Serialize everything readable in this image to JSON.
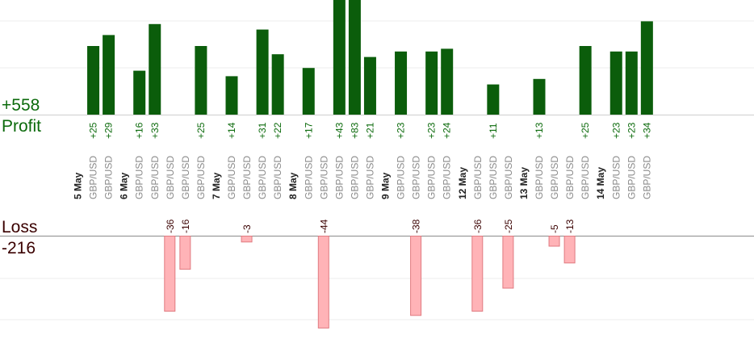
{
  "summary": {
    "profit_total": "+558",
    "profit_label": "Profit",
    "loss_label": "Loss",
    "loss_total": "-216"
  },
  "colors": {
    "profit_bar": "#0b5d0b",
    "profit_text": "#0b6a0b",
    "loss_bar": "#ffb3b7",
    "loss_edge": "#e07a80",
    "loss_text": "#3a0000",
    "day_text": "#222222",
    "pair_text": "#8a8a8a"
  },
  "chart_data": {
    "type": "bar",
    "title": "",
    "xlabel": "",
    "ylabel": "",
    "profit_axis_clipped_above": 30,
    "loss_axis_clipped_below": -40,
    "slots": [
      {
        "kind": "day",
        "label": "5 May"
      },
      {
        "kind": "trade",
        "pair": "GBP/USD",
        "value": 25
      },
      {
        "kind": "trade",
        "pair": "GBP/USD",
        "value": 29
      },
      {
        "kind": "day",
        "label": "6 May"
      },
      {
        "kind": "trade",
        "pair": "GBP/USD",
        "value": 16
      },
      {
        "kind": "trade",
        "pair": "GBP/USD",
        "value": 33
      },
      {
        "kind": "trade",
        "pair": "GBP/USD",
        "value": -36
      },
      {
        "kind": "trade",
        "pair": "GBP/USD",
        "value": -16
      },
      {
        "kind": "trade",
        "pair": "GBP/USD",
        "value": 25
      },
      {
        "kind": "day",
        "label": "7 May"
      },
      {
        "kind": "trade",
        "pair": "GBP/USD",
        "value": 14
      },
      {
        "kind": "trade",
        "pair": "GBP/USD",
        "value": -3
      },
      {
        "kind": "trade",
        "pair": "GBP/USD",
        "value": 31
      },
      {
        "kind": "trade",
        "pair": "GBP/USD",
        "value": 22
      },
      {
        "kind": "day",
        "label": "8 May"
      },
      {
        "kind": "trade",
        "pair": "GBP/USD",
        "value": 17
      },
      {
        "kind": "trade",
        "pair": "GBP/USD",
        "value": -44
      },
      {
        "kind": "trade",
        "pair": "GBP/USD",
        "value": 43
      },
      {
        "kind": "trade",
        "pair": "GBP/USD",
        "value": 83
      },
      {
        "kind": "trade",
        "pair": "GBP/USD",
        "value": 21
      },
      {
        "kind": "day",
        "label": "9 May"
      },
      {
        "kind": "trade",
        "pair": "GBP/USD",
        "value": 23
      },
      {
        "kind": "trade",
        "pair": "GBP/USD",
        "value": -38
      },
      {
        "kind": "trade",
        "pair": "GBP/USD",
        "value": 23
      },
      {
        "kind": "trade",
        "pair": "GBP/USD",
        "value": 24
      },
      {
        "kind": "day",
        "label": "12 May"
      },
      {
        "kind": "trade",
        "pair": "GBP/USD",
        "value": -36
      },
      {
        "kind": "trade",
        "pair": "GBP/USD",
        "value": 11
      },
      {
        "kind": "trade",
        "pair": "GBP/USD",
        "value": -25
      },
      {
        "kind": "day",
        "label": "13 May"
      },
      {
        "kind": "trade",
        "pair": "GBP/USD",
        "value": 13
      },
      {
        "kind": "trade",
        "pair": "GBP/USD",
        "value": -5
      },
      {
        "kind": "trade",
        "pair": "GBP/USD",
        "value": -13
      },
      {
        "kind": "trade",
        "pair": "GBP/USD",
        "value": 25
      },
      {
        "kind": "day",
        "label": "14 May"
      },
      {
        "kind": "trade",
        "pair": "GBP/USD",
        "value": 23
      },
      {
        "kind": "trade",
        "pair": "GBP/USD",
        "value": 23
      },
      {
        "kind": "trade",
        "pair": "GBP/USD",
        "value": 34
      }
    ]
  }
}
